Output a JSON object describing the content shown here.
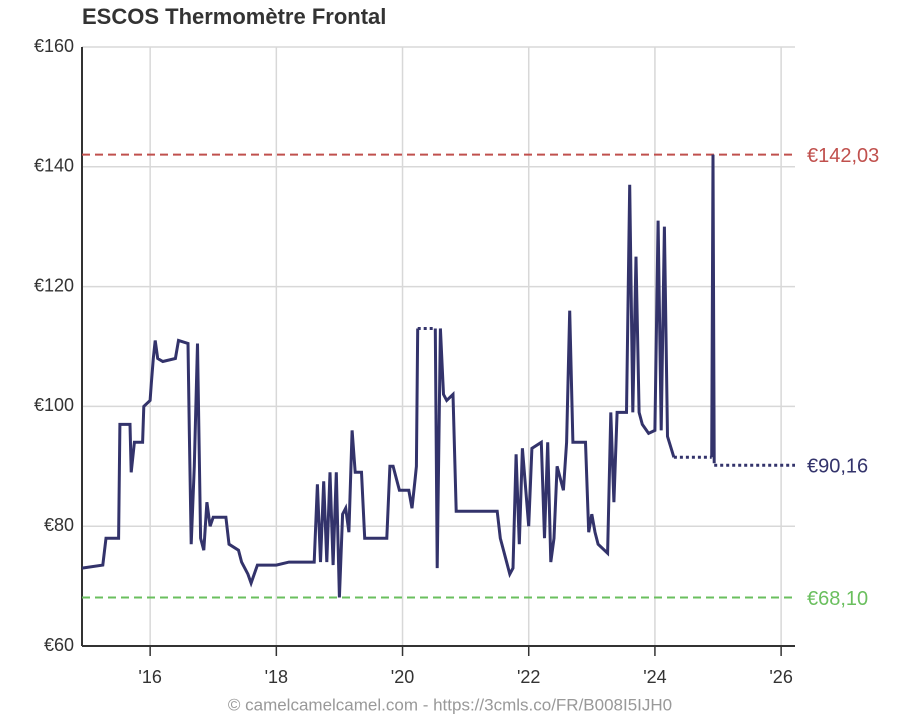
{
  "chart_data": {
    "type": "line",
    "title": "ESCOS Thermomètre Frontal",
    "footer": "© camelcamelcamel.com - https://3cmls.co/FR/B008I5IJH0",
    "xlim": [
      2014.92,
      2026.22
    ],
    "xticks": [
      {
        "value": 2016,
        "label": "'16"
      },
      {
        "value": 2018,
        "label": "'18"
      },
      {
        "value": 2020,
        "label": "'20"
      },
      {
        "value": 2022,
        "label": "'22"
      },
      {
        "value": 2024,
        "label": "'24"
      },
      {
        "value": 2026,
        "label": "'26"
      }
    ],
    "ylim": [
      60,
      160
    ],
    "yticks": [
      {
        "value": 60,
        "label": "€60"
      },
      {
        "value": 80,
        "label": "€80"
      },
      {
        "value": 100,
        "label": "€100"
      },
      {
        "value": 120,
        "label": "€120"
      },
      {
        "value": 140,
        "label": "€140"
      },
      {
        "value": 160,
        "label": "€160"
      }
    ],
    "grid": true,
    "series": [
      {
        "color": "#33336b",
        "style": "solid",
        "x": [
          2014.92,
          2015.25,
          2015.3,
          2015.5,
          2015.52,
          2015.68,
          2015.7,
          2015.75,
          2015.88,
          2015.9,
          2016.0,
          2016.02,
          2016.05,
          2016.08,
          2016.12,
          2016.2,
          2016.4,
          2016.45,
          2016.6,
          2016.62,
          2016.65,
          2016.7,
          2016.75,
          2016.8,
          2016.85,
          2016.9,
          2016.95,
          2017.0,
          2017.2,
          2017.25,
          2017.4,
          2017.45,
          2017.55,
          2017.6,
          2017.7,
          2017.8,
          2018.0,
          2018.2,
          2018.5,
          2018.6,
          2018.65,
          2018.7,
          2018.75,
          2018.8,
          2018.85,
          2018.9,
          2018.95,
          2019.0,
          2019.05,
          2019.1,
          2019.15,
          2019.2,
          2019.25,
          2019.35,
          2019.4,
          2019.75,
          2019.8,
          2019.85,
          2019.95,
          2020.1,
          2020.15,
          2020.2,
          2020.22,
          2020.24,
          null,
          2020.52,
          2020.55,
          2020.6,
          2020.65,
          2020.7,
          2020.8,
          2020.85,
          2021.5,
          2021.55,
          2021.6,
          2021.7,
          2021.75,
          2021.8,
          2021.85,
          2021.9,
          2022.0,
          2022.05,
          2022.2,
          2022.25,
          2022.3,
          2022.35,
          2022.4,
          2022.45,
          2022.55,
          2022.6,
          2022.65,
          2022.7,
          2022.9,
          2022.95,
          2023.0,
          2023.05,
          2023.1,
          2023.25,
          2023.3,
          2023.35,
          2023.4,
          2023.55,
          2023.6,
          2023.65,
          2023.7,
          2023.75,
          2023.8,
          2023.9,
          2024.0,
          2024.05,
          2024.1,
          2024.15,
          2024.2,
          2024.3,
          null,
          2024.9,
          2024.92,
          2024.94
        ],
        "values": [
          73,
          73.5,
          78,
          78,
          97,
          97,
          89,
          94,
          94,
          100,
          101,
          104,
          108,
          111,
          108,
          107.5,
          108,
          111,
          110.5,
          96,
          77,
          90,
          110.5,
          78,
          76,
          84,
          80,
          81.5,
          81.5,
          77,
          76,
          74,
          72,
          70.5,
          73.5,
          73.5,
          73.5,
          74,
          74,
          74,
          87,
          74,
          87.5,
          74,
          89,
          73.5,
          89,
          68.1,
          82,
          83,
          79,
          96,
          89,
          89,
          78,
          78,
          90,
          90,
          86,
          86,
          83,
          88,
          90,
          113,
          null,
          113,
          73,
          113,
          102,
          101,
          102,
          82.5,
          82.5,
          78,
          76,
          72,
          73,
          92,
          77,
          93,
          80,
          93,
          94,
          78,
          94,
          74,
          78,
          90,
          86,
          94,
          116,
          94,
          94,
          79,
          82,
          79,
          77,
          75.5,
          99,
          84,
          99,
          99,
          137,
          99,
          125,
          99,
          97,
          95.5,
          96,
          131,
          96,
          130,
          95,
          91.5,
          null,
          91.5,
          142.03,
          90.5
        ]
      },
      {
        "color": "#33336b",
        "style": "dotted",
        "x": [
          2020.24,
          2020.52,
          null,
          2024.3,
          2024.9,
          null,
          2024.94,
          2026.22
        ],
        "values": [
          113,
          113,
          null,
          91.5,
          91.5,
          null,
          90.16,
          90.16
        ]
      }
    ],
    "reference_lines": [
      {
        "value": 142.03,
        "label": "€142,03",
        "color": "#c0504d",
        "dashed": true
      },
      {
        "value": 90.16,
        "label": "€90,16",
        "color": "#33336b",
        "dashed": false
      },
      {
        "value": 68.1,
        "label": "€68,10",
        "color": "#6abf5e",
        "dashed": true
      }
    ]
  }
}
